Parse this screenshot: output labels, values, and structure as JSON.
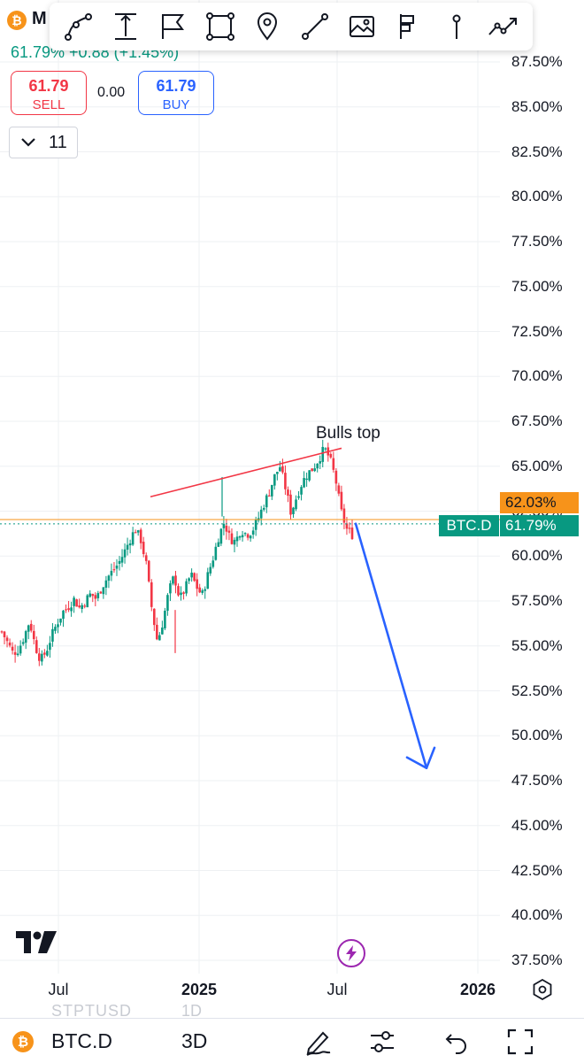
{
  "header": {
    "symbol_badge": "₿",
    "symbol_short": "M",
    "price_line": "61.79% +0.88 (+1.45%)",
    "sell": {
      "value": "61.79",
      "label": "SELL"
    },
    "buy": {
      "value": "61.79",
      "label": "BUY"
    },
    "spread": "0.00",
    "collapsed_count": "11"
  },
  "toolbar": {
    "tools": [
      "curve-tool-icon",
      "measure-tool-icon",
      "flag-tool-icon",
      "rectangle-tool-icon",
      "location-pin-icon",
      "trend-line-icon",
      "image-icon",
      "long-position-icon",
      "price-line-icon",
      "forecast-icon"
    ]
  },
  "price_tags": {
    "orange_value": "62.03%",
    "symbol": "BTC.D",
    "current_value": "61.79%"
  },
  "annotation": "Bulls top",
  "chart_data": {
    "type": "candlestick",
    "symbol": "BTC.D",
    "y_unit": "%",
    "ylim": [
      36.5,
      89.0
    ],
    "y_ticks": [
      "87.50%",
      "85.00%",
      "82.50%",
      "80.00%",
      "77.50%",
      "75.00%",
      "72.50%",
      "70.00%",
      "67.50%",
      "65.00%",
      "62.50%",
      "60.00%",
      "57.50%",
      "55.00%",
      "52.50%",
      "50.00%",
      "47.50%",
      "45.00%",
      "42.50%",
      "40.00%",
      "37.50%"
    ],
    "x_ticks": [
      "Jul",
      "2025",
      "Jul",
      "2026"
    ],
    "x_ticks_bold": [
      false,
      true,
      false,
      true
    ],
    "colors": {
      "up": "#089981",
      "down": "#f23645",
      "trendline": "#f23645",
      "projection": "#2962ff",
      "level": "#f7931a"
    },
    "approx_path": [
      55.8,
      55.2,
      54.6,
      54.8,
      55.5,
      56.4,
      55.0,
      54.2,
      54.7,
      55.6,
      56.3,
      56.9,
      57.2,
      57.6,
      57.1,
      57.5,
      57.9,
      57.6,
      58.3,
      58.8,
      59.2,
      59.6,
      60.2,
      60.9,
      61.5,
      60.9,
      59.5,
      57.0,
      55.2,
      56.4,
      58.0,
      58.9,
      57.6,
      58.2,
      59.0,
      58.3,
      57.8,
      58.9,
      59.9,
      61.1,
      61.9,
      61.0,
      60.8,
      61.5,
      61.2,
      61.4,
      62.0,
      62.8,
      63.5,
      64.4,
      65.0,
      63.8,
      62.4,
      63.3,
      64.1,
      64.6,
      64.9,
      65.4,
      66.0,
      65.4,
      64.3,
      62.5,
      61.5,
      61.2
    ],
    "trendline": {
      "from": [
        0.253,
        63.3
      ],
      "to": [
        0.578,
        66.0
      ]
    },
    "level": 62.03,
    "current": 61.79,
    "projection": {
      "from": 61.8,
      "to": 48.2
    }
  },
  "branding": {
    "logo": "tradingview-logo-icon"
  },
  "watermark": {
    "text": "STPTUSD",
    "interval": "1D"
  },
  "bottom_bar": {
    "badge": "₿",
    "symbol": "BTC.D",
    "interval": "3D",
    "icons": [
      "draw-pen-icon",
      "indicator-settings-icon",
      "undo-icon",
      "fullscreen-icon"
    ]
  }
}
